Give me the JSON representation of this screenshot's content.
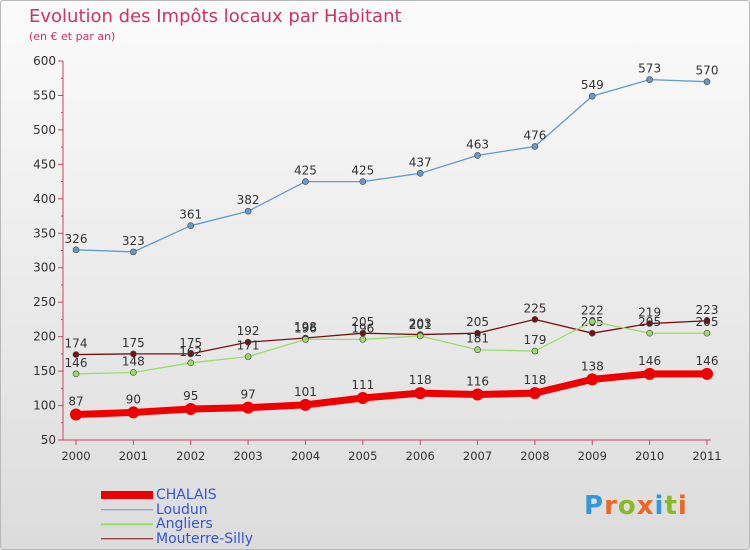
{
  "title": "Evolution des Impôts locaux par Habitant",
  "subtitle": "(en € et par an)",
  "logo": "Proxiti",
  "chart_data": {
    "type": "line",
    "title": "Evolution des Impôts locaux par Habitant",
    "subtitle": "(en € et par an)",
    "x": [
      "2000",
      "2001",
      "2002",
      "2003",
      "2004",
      "2005",
      "2006",
      "2007",
      "2008",
      "2009",
      "2010",
      "2011"
    ],
    "ylim": [
      50,
      600
    ],
    "yticks": [
      50,
      100,
      150,
      200,
      250,
      300,
      350,
      400,
      450,
      500,
      550,
      600
    ],
    "grid": false,
    "legend_position": "bottom-left",
    "series": [
      {
        "name": "CHALAIS",
        "color": "#ee0000",
        "values": [
          87,
          90,
          95,
          97,
          101,
          111,
          118,
          116,
          118,
          138,
          146,
          146
        ]
      },
      {
        "name": "Loudun",
        "color": "#6699cc",
        "values": [
          326,
          323,
          361,
          382,
          425,
          425,
          437,
          463,
          476,
          549,
          573,
          570
        ]
      },
      {
        "name": "Angliers",
        "color": "#99dd66",
        "values": [
          146,
          148,
          162,
          171,
          196,
          196,
          201,
          181,
          179,
          222,
          205,
          205
        ]
      },
      {
        "name": "Mouterre-Silly",
        "color": "#771111",
        "values": [
          174,
          175,
          175,
          192,
          198,
          205,
          203,
          205,
          225,
          205,
          219,
          223
        ]
      }
    ]
  }
}
